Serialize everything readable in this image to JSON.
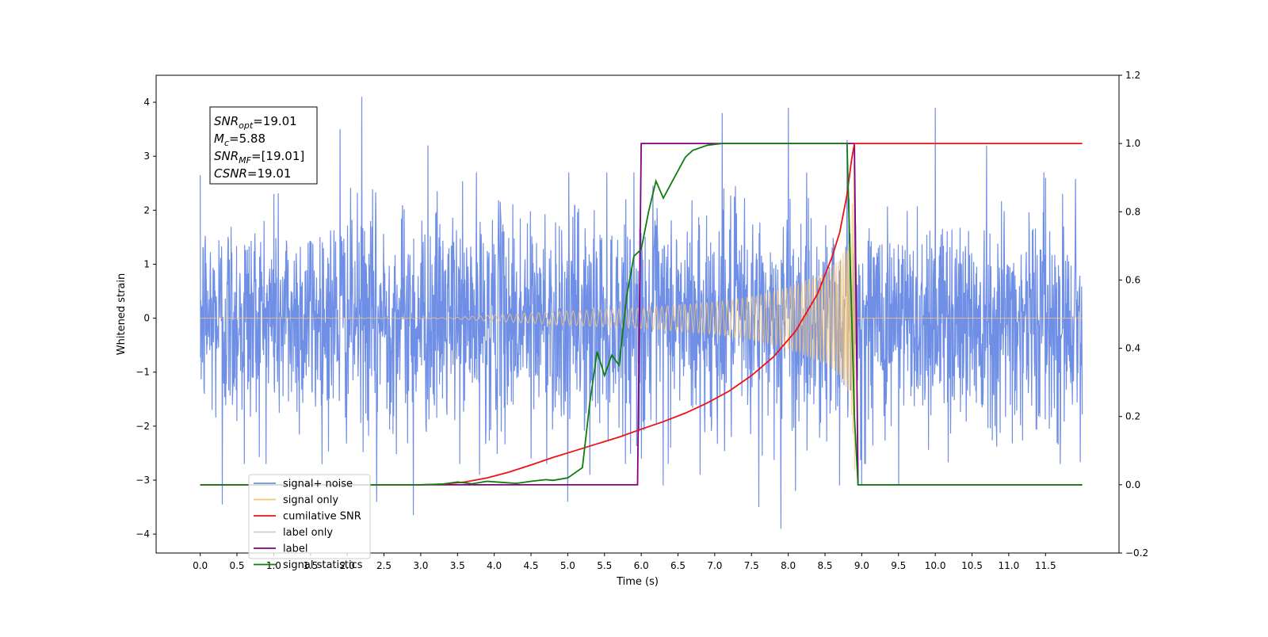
{
  "chart_data": {
    "type": "line",
    "xlabel": "Time (s)",
    "ylabel": "Whitened strain",
    "xlim": [
      -0.6,
      12.5
    ],
    "ylim": [
      -4.35,
      4.5
    ],
    "y2lim": [
      -0.2,
      1.2
    ],
    "x_ticks": [
      "0.0",
      "0.5",
      "1.0",
      "1.5",
      "2.0",
      "2.5",
      "3.0",
      "3.5",
      "4.0",
      "4.5",
      "5.0",
      "5.5",
      "6.0",
      "6.5",
      "7.0",
      "7.5",
      "8.0",
      "8.5",
      "9.0",
      "9.5",
      "10.0",
      "10.5",
      "11.0",
      "11.5"
    ],
    "y_ticks": [
      "-4",
      "-3",
      "-2",
      "-1",
      "0",
      "1",
      "2",
      "3",
      "4"
    ],
    "y2_ticks": [
      "-0.2",
      "0.0",
      "0.2",
      "0.4",
      "0.6",
      "0.8",
      "1.0",
      "1.2"
    ],
    "grid": false,
    "legend_position": "lower-left",
    "annotation": {
      "lines": [
        {
          "main": "SNR",
          "sub": "opt",
          "rest": "=19.01"
        },
        {
          "main": "M",
          "sub": "c",
          "rest": "=5.88"
        },
        {
          "main": "SNR",
          "sub": "MF",
          "rest": "=[19.01]"
        },
        {
          "main": "CSNR",
          "sub": "",
          "rest": "=19.01"
        }
      ]
    },
    "series": [
      {
        "name": "signal+ noise",
        "axis": "left",
        "color": "#6f8ee6",
        "x_start": 0.0,
        "x_end": 12.0,
        "noise_std": 1.0,
        "spikes": [
          [
            0.0,
            2.65
          ],
          [
            0.3,
            -3.45
          ],
          [
            0.6,
            -2.7
          ],
          [
            1.0,
            2.3
          ],
          [
            1.9,
            3.5
          ],
          [
            2.2,
            4.1
          ],
          [
            2.4,
            -3.4
          ],
          [
            2.9,
            -3.65
          ],
          [
            3.1,
            3.2
          ],
          [
            3.8,
            -2.9
          ],
          [
            4.5,
            -2.6
          ],
          [
            5.0,
            -3.4
          ],
          [
            5.3,
            -2.9
          ],
          [
            6.0,
            -2.6
          ],
          [
            6.3,
            -3.1
          ],
          [
            6.8,
            -2.9
          ],
          [
            7.1,
            3.8
          ],
          [
            7.6,
            -3.5
          ],
          [
            7.9,
            -3.9
          ],
          [
            8.0,
            3.9
          ],
          [
            8.1,
            -3.2
          ],
          [
            8.7,
            -3.1
          ],
          [
            8.8,
            3.3
          ],
          [
            9.0,
            -3.1
          ],
          [
            9.5,
            -3.1
          ],
          [
            10.0,
            3.9
          ],
          [
            10.7,
            3.2
          ],
          [
            11.5,
            2.6
          ]
        ]
      },
      {
        "name": "signal only",
        "axis": "left",
        "color": "#f5c577",
        "envelope": [
          [
            0.0,
            0.0
          ],
          [
            3.4,
            0.01
          ],
          [
            4.0,
            0.06
          ],
          [
            5.0,
            0.13
          ],
          [
            6.0,
            0.19
          ],
          [
            7.0,
            0.3
          ],
          [
            7.5,
            0.4
          ],
          [
            8.0,
            0.58
          ],
          [
            8.5,
            0.85
          ],
          [
            8.7,
            1.1
          ],
          [
            8.85,
            1.5
          ],
          [
            8.9,
            3.2
          ],
          [
            8.93,
            0.0
          ],
          [
            12.0,
            0.0
          ]
        ]
      },
      {
        "name": "cumilative SNR",
        "axis": "right",
        "color": "#ee1111",
        "x": [
          0.0,
          3.0,
          3.3,
          3.6,
          3.9,
          4.2,
          4.5,
          4.8,
          5.1,
          5.4,
          5.7,
          6.0,
          6.3,
          6.6,
          6.9,
          7.2,
          7.5,
          7.8,
          8.1,
          8.4,
          8.6,
          8.7,
          8.8,
          8.86,
          8.9,
          12.0
        ],
        "y": [
          0.0,
          0.0,
          0.002,
          0.008,
          0.02,
          0.037,
          0.058,
          0.08,
          0.1,
          0.12,
          0.14,
          0.163,
          0.185,
          0.21,
          0.24,
          0.275,
          0.32,
          0.375,
          0.45,
          0.56,
          0.67,
          0.74,
          0.85,
          0.95,
          1.0,
          1.0
        ]
      },
      {
        "name": "label only",
        "axis": "right",
        "color": "#cccccc",
        "draw": false
      },
      {
        "name": "label",
        "axis": "right",
        "color": "#800080",
        "x": [
          0.0,
          5.95,
          6.0,
          8.9,
          8.95,
          12.0
        ],
        "y": [
          0.0,
          0.0,
          1.0,
          1.0,
          0.0,
          0.0
        ]
      },
      {
        "name": "signal statistics",
        "axis": "right",
        "color": "#0e7d0e",
        "x": [
          0.0,
          3.0,
          3.3,
          3.5,
          3.7,
          3.9,
          4.1,
          4.3,
          4.5,
          4.7,
          4.8,
          5.0,
          5.2,
          5.3,
          5.4,
          5.5,
          5.6,
          5.7,
          5.8,
          5.9,
          6.0,
          6.1,
          6.2,
          6.3,
          6.4,
          6.5,
          6.6,
          6.7,
          6.9,
          7.1,
          7.5,
          8.0,
          8.5,
          8.8,
          8.9,
          8.95,
          9.0,
          12.0
        ],
        "y": [
          0.0,
          0.0,
          0.002,
          0.008,
          0.003,
          0.01,
          0.007,
          0.004,
          0.01,
          0.015,
          0.013,
          0.02,
          0.05,
          0.24,
          0.39,
          0.32,
          0.38,
          0.35,
          0.55,
          0.67,
          0.69,
          0.8,
          0.89,
          0.84,
          0.88,
          0.92,
          0.96,
          0.98,
          0.995,
          1.0,
          1.0,
          1.0,
          1.0,
          1.0,
          0.2,
          0.0,
          0.0,
          0.0
        ]
      }
    ]
  }
}
